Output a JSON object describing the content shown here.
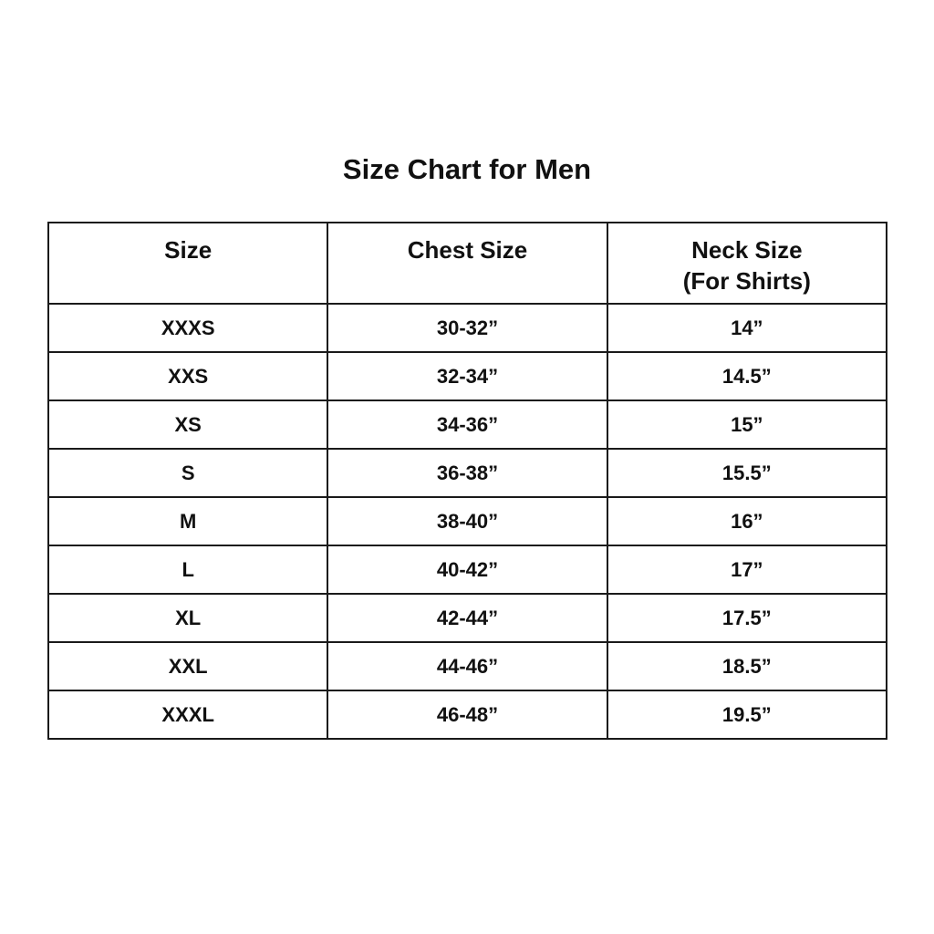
{
  "title": "Size Chart for Men",
  "table": {
    "headers": [
      {
        "line1": "Size",
        "line2": ""
      },
      {
        "line1": "Chest Size",
        "line2": ""
      },
      {
        "line1": "Neck Size",
        "line2": "(For Shirts)"
      }
    ],
    "rows": [
      [
        "XXXS",
        "30-32”",
        "14”"
      ],
      [
        "XXS",
        "32-34”",
        "14.5”"
      ],
      [
        "XS",
        "34-36”",
        "15”"
      ],
      [
        "S",
        "36-38”",
        "15.5”"
      ],
      [
        "M",
        "38-40”",
        "16”"
      ],
      [
        "L",
        "40-42”",
        "17”"
      ],
      [
        "XL",
        "42-44”",
        "17.5”"
      ],
      [
        "XXL",
        "44-46”",
        "18.5”"
      ],
      [
        "XXXL",
        "46-48”",
        "19.5”"
      ]
    ]
  }
}
